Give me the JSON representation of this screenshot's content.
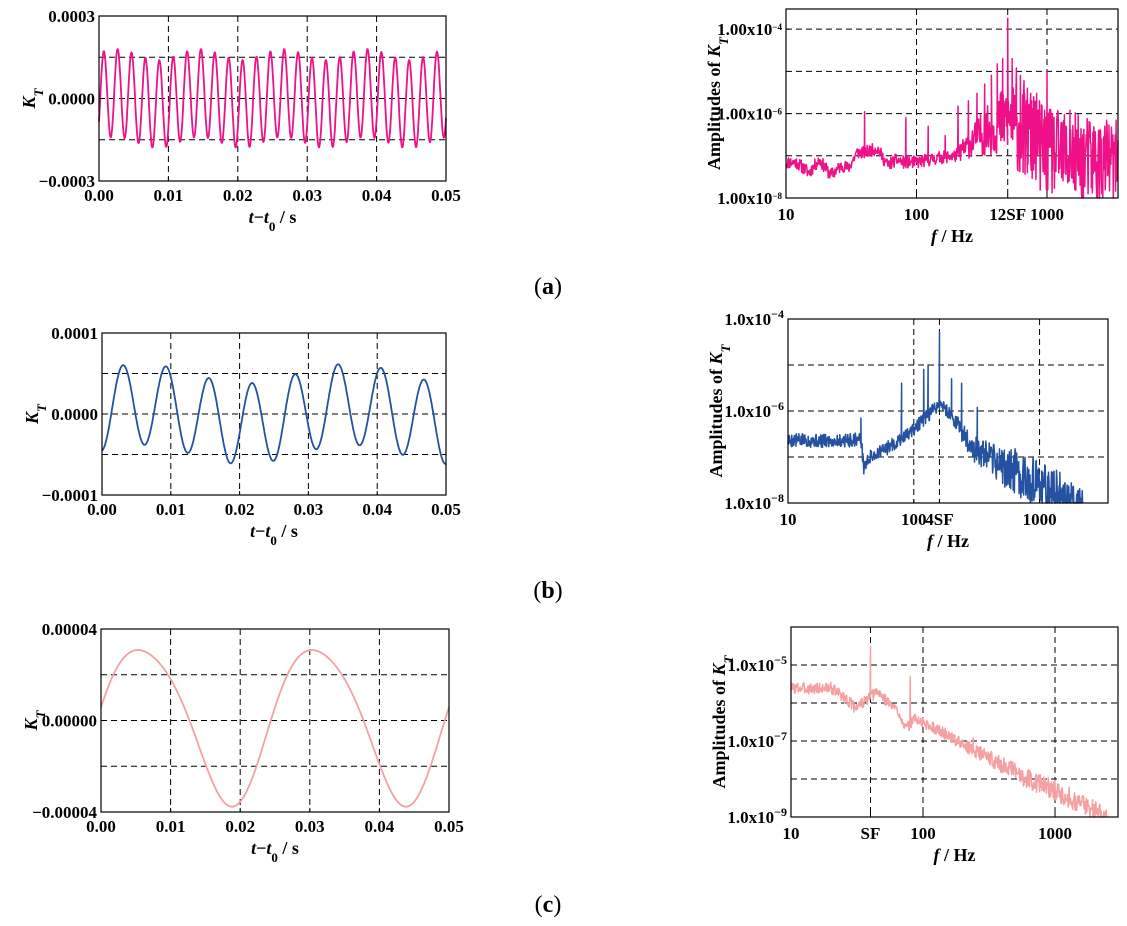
{
  "panel_labels": [
    "a",
    "b",
    "c"
  ],
  "time_xlabel": {
    "main": "t",
    "minus": "−",
    "sub_t": "t",
    "sub_0": "0",
    "unit": " / s"
  },
  "freq_xlabel": {
    "main": "f",
    "unit": " / Hz"
  },
  "time_ylabel": {
    "main": "K",
    "sub": "T"
  },
  "freq_ylabel": {
    "main": "Amplitudes of K",
    "sub": "T"
  },
  "chart_data": [
    {
      "id": "a-time",
      "type": "line",
      "color": "#ee1188",
      "xlim": [
        0,
        0.05
      ],
      "ylim": [
        -0.0003,
        0.0003
      ],
      "xticks": [
        "0.00",
        "0.01",
        "0.02",
        "0.03",
        "0.04",
        "0.05"
      ],
      "yticks": [
        "−0.0003",
        "0.0000",
        "0.0003"
      ],
      "grid_y": [
        -0.00015,
        0,
        0.00015
      ],
      "signal": {
        "components": [
          {
            "amp": 0.00016,
            "freq": 500,
            "phase": -0.6
          },
          {
            "amp": 2e-05,
            "freq": 83,
            "phase": 0.3
          }
        ],
        "offset": 0
      }
    },
    {
      "id": "a-freq",
      "type": "line",
      "color": "#ee1188",
      "xscale": "log",
      "yscale": "log",
      "xlim": [
        10,
        3500
      ],
      "ylim": [
        1e-08,
        0.0003
      ],
      "xticks": [
        {
          "v": 10,
          "label": "10"
        },
        {
          "v": 100,
          "label": "100"
        },
        {
          "v": 500,
          "label": "12SF"
        },
        {
          "v": 1000,
          "label": "1000"
        }
      ],
      "yticks": [
        {
          "v": 1e-08,
          "mant": "1.00x10",
          "exp": "−8"
        },
        {
          "v": 1e-06,
          "mant": "1.00x10",
          "exp": "−6"
        },
        {
          "v": 0.0001,
          "mant": "1.00x10",
          "exp": "−4"
        }
      ],
      "grid_x": [
        100,
        500,
        1000
      ],
      "grid_y": [
        1e-07,
        1e-06,
        1e-05,
        0.0001
      ],
      "spectrum": {
        "floor_points": [
          [
            10,
            7e-08
          ],
          [
            12,
            7e-08
          ],
          [
            15,
            4e-08
          ],
          [
            18,
            8e-08
          ],
          [
            22,
            3.5e-08
          ],
          [
            27,
            6e-08
          ],
          [
            30,
            5e-08
          ],
          [
            35,
            1.2e-07
          ],
          [
            40,
            1.2e-07
          ],
          [
            50,
            1.5e-07
          ],
          [
            60,
            6e-08
          ],
          [
            70,
            8e-08
          ],
          [
            80,
            7e-08
          ],
          [
            100,
            7e-08
          ],
          [
            150,
            9e-08
          ],
          [
            200,
            1e-07
          ],
          [
            300,
            3e-07
          ],
          [
            400,
            5e-07
          ],
          [
            500,
            8e-07
          ],
          [
            600,
            4e-07
          ],
          [
            800,
            2e-07
          ],
          [
            1000,
            1.2e-07
          ],
          [
            1500,
            1e-07
          ],
          [
            2000,
            8e-08
          ],
          [
            3000,
            7e-08
          ],
          [
            3500,
            6e-08
          ]
        ],
        "peaks": [
          [
            40,
            1.1e-06
          ],
          [
            83,
            8e-07
          ],
          [
            123,
            5e-07
          ],
          [
            166,
            3e-07
          ],
          [
            208,
            1.5e-06
          ],
          [
            250,
            2e-06
          ],
          [
            291,
            3e-06
          ],
          [
            333,
            5e-06
          ],
          [
            375,
            8e-06
          ],
          [
            416,
            1.5e-05
          ],
          [
            458,
            2e-05
          ],
          [
            500,
            0.00018
          ],
          [
            541,
            2e-05
          ],
          [
            583,
            1.2e-05
          ],
          [
            625,
            8e-06
          ],
          [
            666,
            6e-06
          ],
          [
            708,
            4e-06
          ],
          [
            750,
            3e-06
          ],
          [
            791,
            2.5e-06
          ],
          [
            833,
            3e-06
          ],
          [
            875,
            2e-06
          ],
          [
            916,
            1.5e-06
          ],
          [
            958,
            1.2e-06
          ],
          [
            1000,
            1e-05
          ],
          [
            1100,
            1e-06
          ],
          [
            1200,
            8e-07
          ],
          [
            1300,
            6e-07
          ],
          [
            1400,
            5e-07
          ],
          [
            1500,
            1.2e-06
          ],
          [
            1700,
            4e-07
          ],
          [
            1900,
            3e-07
          ],
          [
            2100,
            4e-07
          ],
          [
            2300,
            3e-07
          ],
          [
            2600,
            2.5e-07
          ],
          [
            2900,
            2e-07
          ],
          [
            3200,
            2e-07
          ]
        ],
        "noise": 0.9,
        "seed": 11,
        "min_clip": 1e-08
      }
    },
    {
      "id": "b-time",
      "type": "line",
      "color": "#2452a0",
      "xlim": [
        0,
        0.05
      ],
      "ylim": [
        -0.0001,
        0.0001
      ],
      "xticks": [
        "0.00",
        "0.01",
        "0.02",
        "0.03",
        "0.04",
        "0.05"
      ],
      "yticks": [
        "−0.0001",
        "0.0000",
        "0.0001"
      ],
      "grid_y": [
        -5e-05,
        0,
        5e-05
      ],
      "signal": {
        "components": [
          {
            "amp": 5e-05,
            "freq": 160,
            "phase": -1.5
          },
          {
            "amp": 1.2e-05,
            "freq": 33,
            "phase": 0.4
          }
        ],
        "offset": 0
      }
    },
    {
      "id": "b-freq",
      "type": "line",
      "color": "#2452a0",
      "xscale": "log",
      "yscale": "log",
      "xlim": [
        10,
        3500
      ],
      "ylim": [
        1e-08,
        0.0001
      ],
      "xticks": [
        {
          "v": 10,
          "label": "10"
        },
        {
          "v": 100,
          "label": "100"
        },
        {
          "v": 160,
          "label": "4SF"
        },
        {
          "v": 1000,
          "label": "1000"
        }
      ],
      "yticks": [
        {
          "v": 1e-08,
          "mant": "1.0x10",
          "exp": "−8"
        },
        {
          "v": 1e-06,
          "mant": "1.0x10",
          "exp": "−6"
        },
        {
          "v": 0.0001,
          "mant": "1.0x10",
          "exp": "−4"
        }
      ],
      "grid_x": [
        100,
        160,
        1000
      ],
      "grid_y": [
        1e-07,
        1e-06,
        1e-05
      ],
      "spectrum": {
        "floor_points": [
          [
            10,
            2.3e-07
          ],
          [
            15,
            2.3e-07
          ],
          [
            20,
            2.2e-07
          ],
          [
            30,
            2.3e-07
          ],
          [
            38,
            2.5e-07
          ],
          [
            40,
            6e-08
          ],
          [
            45,
            1e-07
          ],
          [
            60,
            1.5e-07
          ],
          [
            80,
            2.5e-07
          ],
          [
            100,
            4e-07
          ],
          [
            130,
            8e-07
          ],
          [
            160,
            1.5e-06
          ],
          [
            200,
            8e-07
          ],
          [
            250,
            3e-07
          ],
          [
            300,
            1.5e-07
          ],
          [
            400,
            9e-08
          ],
          [
            600,
            5e-08
          ],
          [
            800,
            3.5e-08
          ],
          [
            1000,
            2.5e-08
          ],
          [
            1500,
            1.5e-08
          ],
          [
            2000,
            1e-08
          ],
          [
            2200,
            8e-09
          ]
        ],
        "peaks": [
          [
            38,
            7e-07
          ],
          [
            80,
            4e-06
          ],
          [
            120,
            8e-06
          ],
          [
            130,
            1e-05
          ],
          [
            160,
            5e-05
          ],
          [
            200,
            5e-06
          ],
          [
            240,
            4e-06
          ],
          [
            320,
            1.2e-06
          ],
          [
            480,
            1.5e-07
          ],
          [
            640,
            1.5e-07
          ],
          [
            800,
            6e-08
          ]
        ],
        "noise": 0.35,
        "seed": 5,
        "min_clip": 1e-08
      }
    },
    {
      "id": "c-time",
      "type": "line",
      "color": "#f5a0a3",
      "xlim": [
        0,
        0.05
      ],
      "ylim": [
        -4e-05,
        4e-05
      ],
      "xticks": [
        "0.00",
        "0.01",
        "0.02",
        "0.03",
        "0.04",
        "0.05"
      ],
      "yticks": [
        "−0.00004",
        "0.00000",
        "0.00004"
      ],
      "grid_y": [
        -2e-05,
        0,
        2e-05
      ],
      "signal": {
        "components": [
          {
            "amp": 3.4e-05,
            "freq": 40,
            "phase": 0.06
          },
          {
            "amp": 4e-06,
            "freq": 80,
            "phase": 1.2
          }
        ],
        "offset": 0
      }
    },
    {
      "id": "c-freq",
      "type": "line",
      "color": "#f5a0a3",
      "xscale": "log",
      "yscale": "log",
      "xlim": [
        10,
        3000
      ],
      "ylim": [
        1e-09,
        0.0001
      ],
      "xticks": [
        {
          "v": 10,
          "label": "10"
        },
        {
          "v": 40,
          "label": "SF"
        },
        {
          "v": 100,
          "label": "100"
        },
        {
          "v": 1000,
          "label": "1000"
        }
      ],
      "yticks": [
        {
          "v": 1e-09,
          "mant": "1.0x10",
          "exp": "−9"
        },
        {
          "v": 1e-07,
          "mant": "1.0x10",
          "exp": "−7"
        },
        {
          "v": 1e-05,
          "mant": "1.0x10",
          "exp": "−5"
        }
      ],
      "grid_x": [
        40,
        100,
        1000
      ],
      "grid_y": [
        1e-08,
        1e-07,
        1e-06,
        1e-05
      ],
      "spectrum": {
        "floor_points": [
          [
            10,
            2.5e-06
          ],
          [
            15,
            2.4e-06
          ],
          [
            20,
            2.5e-06
          ],
          [
            25,
            1.5e-06
          ],
          [
            30,
            8e-07
          ],
          [
            35,
            1e-06
          ],
          [
            38,
            1.2e-06
          ],
          [
            45,
            2e-06
          ],
          [
            55,
            1e-06
          ],
          [
            65,
            6e-07
          ],
          [
            75,
            2e-07
          ],
          [
            85,
            4e-07
          ],
          [
            100,
            3e-07
          ],
          [
            150,
            1.5e-07
          ],
          [
            200,
            8e-08
          ],
          [
            300,
            4e-08
          ],
          [
            500,
            1.5e-08
          ],
          [
            800,
            7e-09
          ],
          [
            1000,
            5e-09
          ],
          [
            1500,
            2.5e-09
          ],
          [
            2000,
            1.5e-09
          ],
          [
            2500,
            1e-09
          ]
        ],
        "peaks": [
          [
            40,
            3e-05
          ],
          [
            80,
            5e-06
          ],
          [
            120,
            3e-07
          ],
          [
            200,
            1e-07
          ],
          [
            240,
            1.2e-07
          ],
          [
            300,
            5e-08
          ]
        ],
        "noise": 0.12,
        "seed": 3,
        "min_clip": 1e-09
      }
    }
  ]
}
